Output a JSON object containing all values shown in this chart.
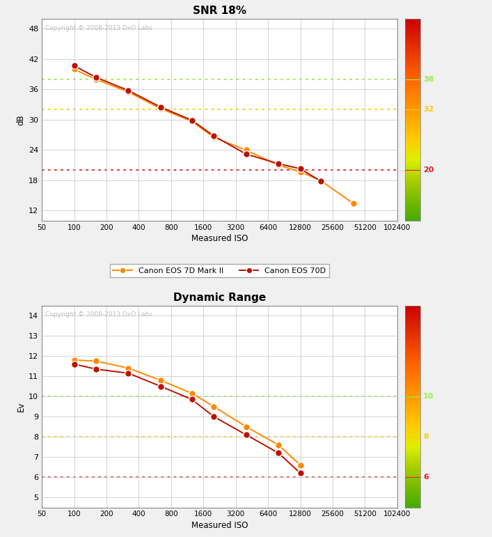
{
  "title1": "SNR 18%",
  "title2": "Dynamic Range",
  "xlabel": "Measured ISO",
  "ylabel1": "dB",
  "ylabel2": "Ev",
  "copyright": "Copyright © 2008-2013 DxO Labs",
  "iso_ticks": [
    50,
    100,
    200,
    400,
    800,
    1600,
    3200,
    6400,
    12800,
    25600,
    51200,
    102400
  ],
  "iso_tick_labels": [
    "50",
    "100",
    "200",
    "400",
    "800",
    "1600",
    "3200",
    "6400",
    "12800",
    "25600",
    "51200",
    "102400"
  ],
  "snr_iso": [
    100,
    160,
    320,
    640,
    1250,
    2000,
    4000,
    8000,
    12800,
    20000,
    40000
  ],
  "snr_7d2": [
    40.0,
    38.0,
    35.5,
    32.2,
    29.7,
    26.5,
    24.0,
    21.0,
    19.7,
    17.9,
    13.4
  ],
  "snr_70d": [
    40.7,
    38.4,
    35.8,
    32.5,
    29.9,
    26.8,
    23.2,
    21.3,
    20.3,
    17.8,
    null
  ],
  "dr_iso": [
    100,
    160,
    320,
    640,
    1250,
    2000,
    4000,
    8000,
    12800,
    20000,
    40000
  ],
  "dr_7d2": [
    11.8,
    11.75,
    11.4,
    10.8,
    10.15,
    9.5,
    8.5,
    7.6,
    6.6,
    null,
    null
  ],
  "dr_70d": [
    11.6,
    11.35,
    11.15,
    10.5,
    9.85,
    9.0,
    8.1,
    7.2,
    6.2,
    null,
    null
  ],
  "snr_ylim": [
    10,
    50
  ],
  "snr_yticks": [
    12,
    18,
    24,
    30,
    36,
    42,
    48
  ],
  "dr_ylim": [
    4.5,
    14.5
  ],
  "dr_yticks": [
    5,
    6,
    7,
    8,
    9,
    10,
    11,
    12,
    13,
    14
  ],
  "snr_hlines": [
    {
      "y": 38,
      "color": "#99ee44",
      "label": "38"
    },
    {
      "y": 32,
      "color": "#ffcc00",
      "label": "32"
    },
    {
      "y": 20,
      "color": "#dd2020",
      "label": "20"
    }
  ],
  "dr_hlines": [
    {
      "y": 10,
      "color": "#99ee44",
      "label": "10"
    },
    {
      "y": 8,
      "color": "#ffcc00",
      "label": "8"
    },
    {
      "y": 6,
      "color": "#dd2020",
      "label": "6"
    }
  ],
  "color_7d2": "#FF8800",
  "color_70d": "#BB1100",
  "label_7d2": "Canon EOS 7D Mark II",
  "label_70d": "Canon EOS 70D",
  "bg_color": "#f0f0f0",
  "plot_bg": "#ffffff",
  "grid_color": "#cccccc",
  "cbar_colors": [
    "#cc0000",
    "#dd2200",
    "#ee4400",
    "#ff6600",
    "#ff8800",
    "#ffaa00",
    "#ffcc00",
    "#ddee00",
    "#aace00",
    "#77bb00",
    "#44aa00"
  ],
  "snr_cbar_ylim": [
    10,
    50
  ],
  "dr_cbar_ylim": [
    4.5,
    14.5
  ]
}
